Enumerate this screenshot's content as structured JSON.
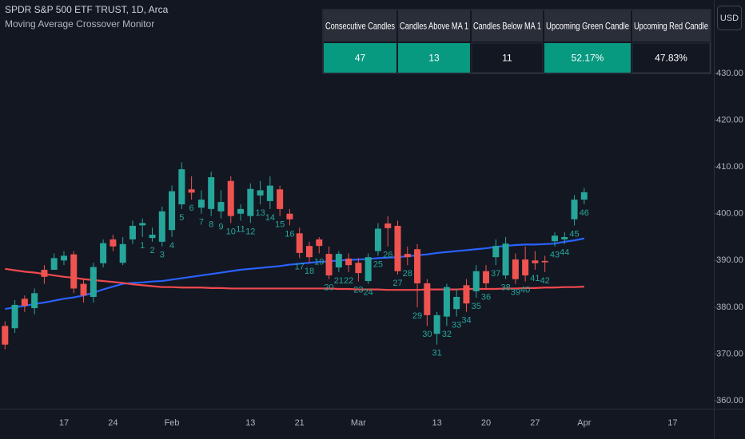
{
  "chart_data": {
    "type": "candlestick",
    "title": "SPDR S&P 500 ETF TRUST, 1D, Arca",
    "subtitle": "Moving Average Crossover Monitor",
    "currency": "USD",
    "categories": [
      null,
      null,
      null,
      null,
      null,
      null,
      "17",
      null,
      null,
      null,
      null,
      "24",
      null,
      null,
      null,
      null,
      null,
      "Feb",
      null,
      null,
      null,
      null,
      null,
      null,
      null,
      "13",
      null,
      null,
      null,
      null,
      "21",
      null,
      null,
      null,
      null,
      null,
      "Mar",
      null,
      null,
      null,
      null,
      null,
      null,
      null,
      "13",
      null,
      null,
      null,
      null,
      "20",
      null,
      null,
      null,
      null,
      "27",
      null,
      null,
      null,
      null,
      "Apr",
      null,
      null,
      null,
      null,
      null,
      null,
      null,
      null,
      "17"
    ],
    "open": [
      376,
      375.5,
      381.8,
      379.8,
      388,
      388,
      390,
      391.3,
      385,
      382.2,
      389.4,
      394.5,
      389.5,
      394.5,
      397.5,
      394.8,
      394,
      396.5,
      402,
      405.2,
      401.3,
      401,
      400.5,
      407,
      400,
      399.5,
      403.9,
      402.7,
      405.2,
      400,
      395.8,
      393.1,
      394.5,
      391.4,
      388.5,
      390.4,
      389.5,
      385.6,
      392,
      397.9,
      397.4,
      391.4,
      392.4,
      385.1,
      374.3,
      378,
      379.6,
      384.7,
      383.4,
      387.7,
      390.7,
      386.8,
      390.2,
      390.2,
      390,
      389.9,
      394.1,
      394.5,
      398.8,
      403,
      null,
      null,
      null,
      null,
      null,
      null,
      null,
      null,
      null
    ],
    "high": [
      377,
      381.5,
      382.5,
      384,
      389,
      391.5,
      392,
      392,
      386,
      389.5,
      394.5,
      395.5,
      395,
      398.5,
      399,
      397,
      401.5,
      406,
      411,
      408,
      405,
      409,
      405,
      408,
      402,
      406.5,
      407,
      408,
      406,
      401,
      397,
      394,
      395,
      393,
      392,
      391.5,
      390.5,
      391.5,
      398,
      399.5,
      398.5,
      393,
      393.5,
      386,
      379,
      385,
      384,
      386,
      389,
      389,
      394.5,
      395,
      391.5,
      393,
      392,
      391,
      396,
      396,
      404,
      405.5,
      null,
      null,
      null,
      null,
      null,
      null,
      null,
      null,
      null
    ],
    "low": [
      371,
      374.5,
      379,
      378.5,
      385,
      388.5,
      389,
      383,
      381,
      381,
      388.5,
      392,
      389,
      393.5,
      395,
      394,
      393,
      395,
      401,
      403,
      400,
      399.5,
      399,
      398,
      398.5,
      398,
      402,
      401,
      399.5,
      397.5,
      390.5,
      389.5,
      391.5,
      386,
      387.5,
      387.5,
      385.5,
      385,
      391,
      393,
      387,
      389,
      380,
      376,
      372,
      376,
      378,
      379,
      382,
      384,
      389,
      386,
      385,
      385.5,
      388,
      387.5,
      393,
      393.5,
      397.5,
      402,
      null,
      null,
      null,
      null,
      null,
      null,
      null,
      null,
      null
    ],
    "close": [
      372,
      380.5,
      380.3,
      383,
      386.5,
      390.5,
      391,
      384,
      382.5,
      388.6,
      393.7,
      393,
      393.5,
      397.4,
      398,
      395.5,
      400.5,
      404.8,
      409.5,
      404.5,
      403,
      407.8,
      402.5,
      399.5,
      401,
      405.3,
      405,
      406,
      401,
      398.8,
      391.6,
      390.7,
      393.1,
      386.8,
      391.4,
      389,
      387.3,
      390.7,
      396.8,
      396.9,
      387.7,
      390.7,
      385.1,
      378.3,
      378.3,
      384.3,
      382.2,
      380.8,
      387.7,
      385.1,
      393.1,
      393.6,
      386,
      386.8,
      389.4,
      389.6,
      395.3,
      395,
      403,
      404.6,
      null,
      null,
      null,
      null,
      null,
      null,
      null,
      null,
      null
    ],
    "up_color": "#26a69a",
    "down_color": "#ef5350",
    "lines": [
      {
        "color": "#2962ff",
        "values": [
          379.6,
          380.0,
          380.3,
          380.7,
          381.0,
          381.4,
          381.8,
          382.1,
          382.5,
          383.1,
          383.8,
          384.4,
          385.0,
          385.2,
          385.3,
          385.5,
          385.6,
          385.9,
          386.2,
          386.5,
          386.8,
          387.1,
          387.4,
          387.7,
          388.0,
          388.2,
          388.4,
          388.6,
          388.8,
          389.1,
          389.3,
          389.5,
          389.7,
          389.8,
          390.0,
          390.1,
          390.2,
          390.3,
          390.5,
          390.6,
          390.7,
          390.9,
          391.1,
          391.3,
          391.6,
          391.8,
          392.0,
          392.2,
          392.4,
          392.6,
          392.9,
          393.1,
          393.3,
          393.4,
          393.4,
          393.5,
          393.6,
          394.0,
          394.3,
          394.7,
          null,
          null,
          null,
          null,
          null,
          null,
          null,
          null,
          null
        ]
      },
      {
        "color": "#f0494e",
        "values": [
          388.2,
          387.9,
          387.6,
          387.4,
          387.1,
          386.8,
          386.5,
          386.3,
          386.0,
          385.8,
          385.6,
          385.4,
          385.2,
          384.9,
          384.7,
          384.5,
          384.3,
          384.3,
          384.2,
          384.2,
          384.2,
          384.1,
          384.1,
          384.0,
          384.0,
          384.0,
          384.0,
          384.0,
          384.0,
          384.0,
          384.0,
          384.0,
          384.0,
          384.0,
          383.9,
          383.9,
          383.8,
          383.8,
          383.8,
          383.7,
          383.7,
          383.7,
          383.7,
          383.8,
          383.8,
          383.8,
          383.8,
          383.9,
          383.9,
          383.9,
          383.9,
          384.0,
          384.0,
          384.1,
          384.1,
          384.2,
          384.2,
          384.3,
          384.3,
          384.4,
          null,
          null,
          null,
          null,
          null,
          null,
          null,
          null,
          null
        ]
      }
    ],
    "count_labels": [
      null,
      null,
      null,
      null,
      null,
      null,
      null,
      null,
      null,
      null,
      null,
      null,
      null,
      null,
      1,
      2,
      3,
      4,
      5,
      6,
      7,
      8,
      9,
      10,
      11,
      12,
      13,
      14,
      15,
      16,
      17,
      18,
      19,
      20,
      21,
      22,
      23,
      24,
      25,
      26,
      27,
      28,
      29,
      30,
      31,
      32,
      33,
      34,
      35,
      36,
      37,
      38,
      39,
      40,
      41,
      42,
      43,
      44,
      45,
      46,
      null,
      null,
      null,
      null,
      null,
      null,
      null,
      null,
      null
    ],
    "count_label_color": "#26a69a",
    "ylim": [
      358.3,
      445.7
    ],
    "yticks": [
      {
        "value": 360,
        "label": "360.00"
      },
      {
        "value": 370,
        "label": "370.00"
      },
      {
        "value": 380,
        "label": "380.00"
      },
      {
        "value": 390,
        "label": "390.00"
      },
      {
        "value": 400,
        "label": "400.00"
      },
      {
        "value": 410,
        "label": "410.00"
      },
      {
        "value": 420,
        "label": "420.00"
      },
      {
        "value": 430,
        "label": "430.00"
      }
    ],
    "grid": false,
    "stats_table": {
      "headers": [
        "Consecutive Candles",
        "Candles Above MA 1",
        "Candles Below MA 1",
        "Upcoming Green Candle",
        "Upcoming Red Candle"
      ],
      "values": [
        "47",
        "13",
        "11",
        "52.17%",
        "47.83%"
      ],
      "highlight": [
        true,
        true,
        false,
        true,
        false
      ],
      "highlight_color": "#089981"
    }
  }
}
